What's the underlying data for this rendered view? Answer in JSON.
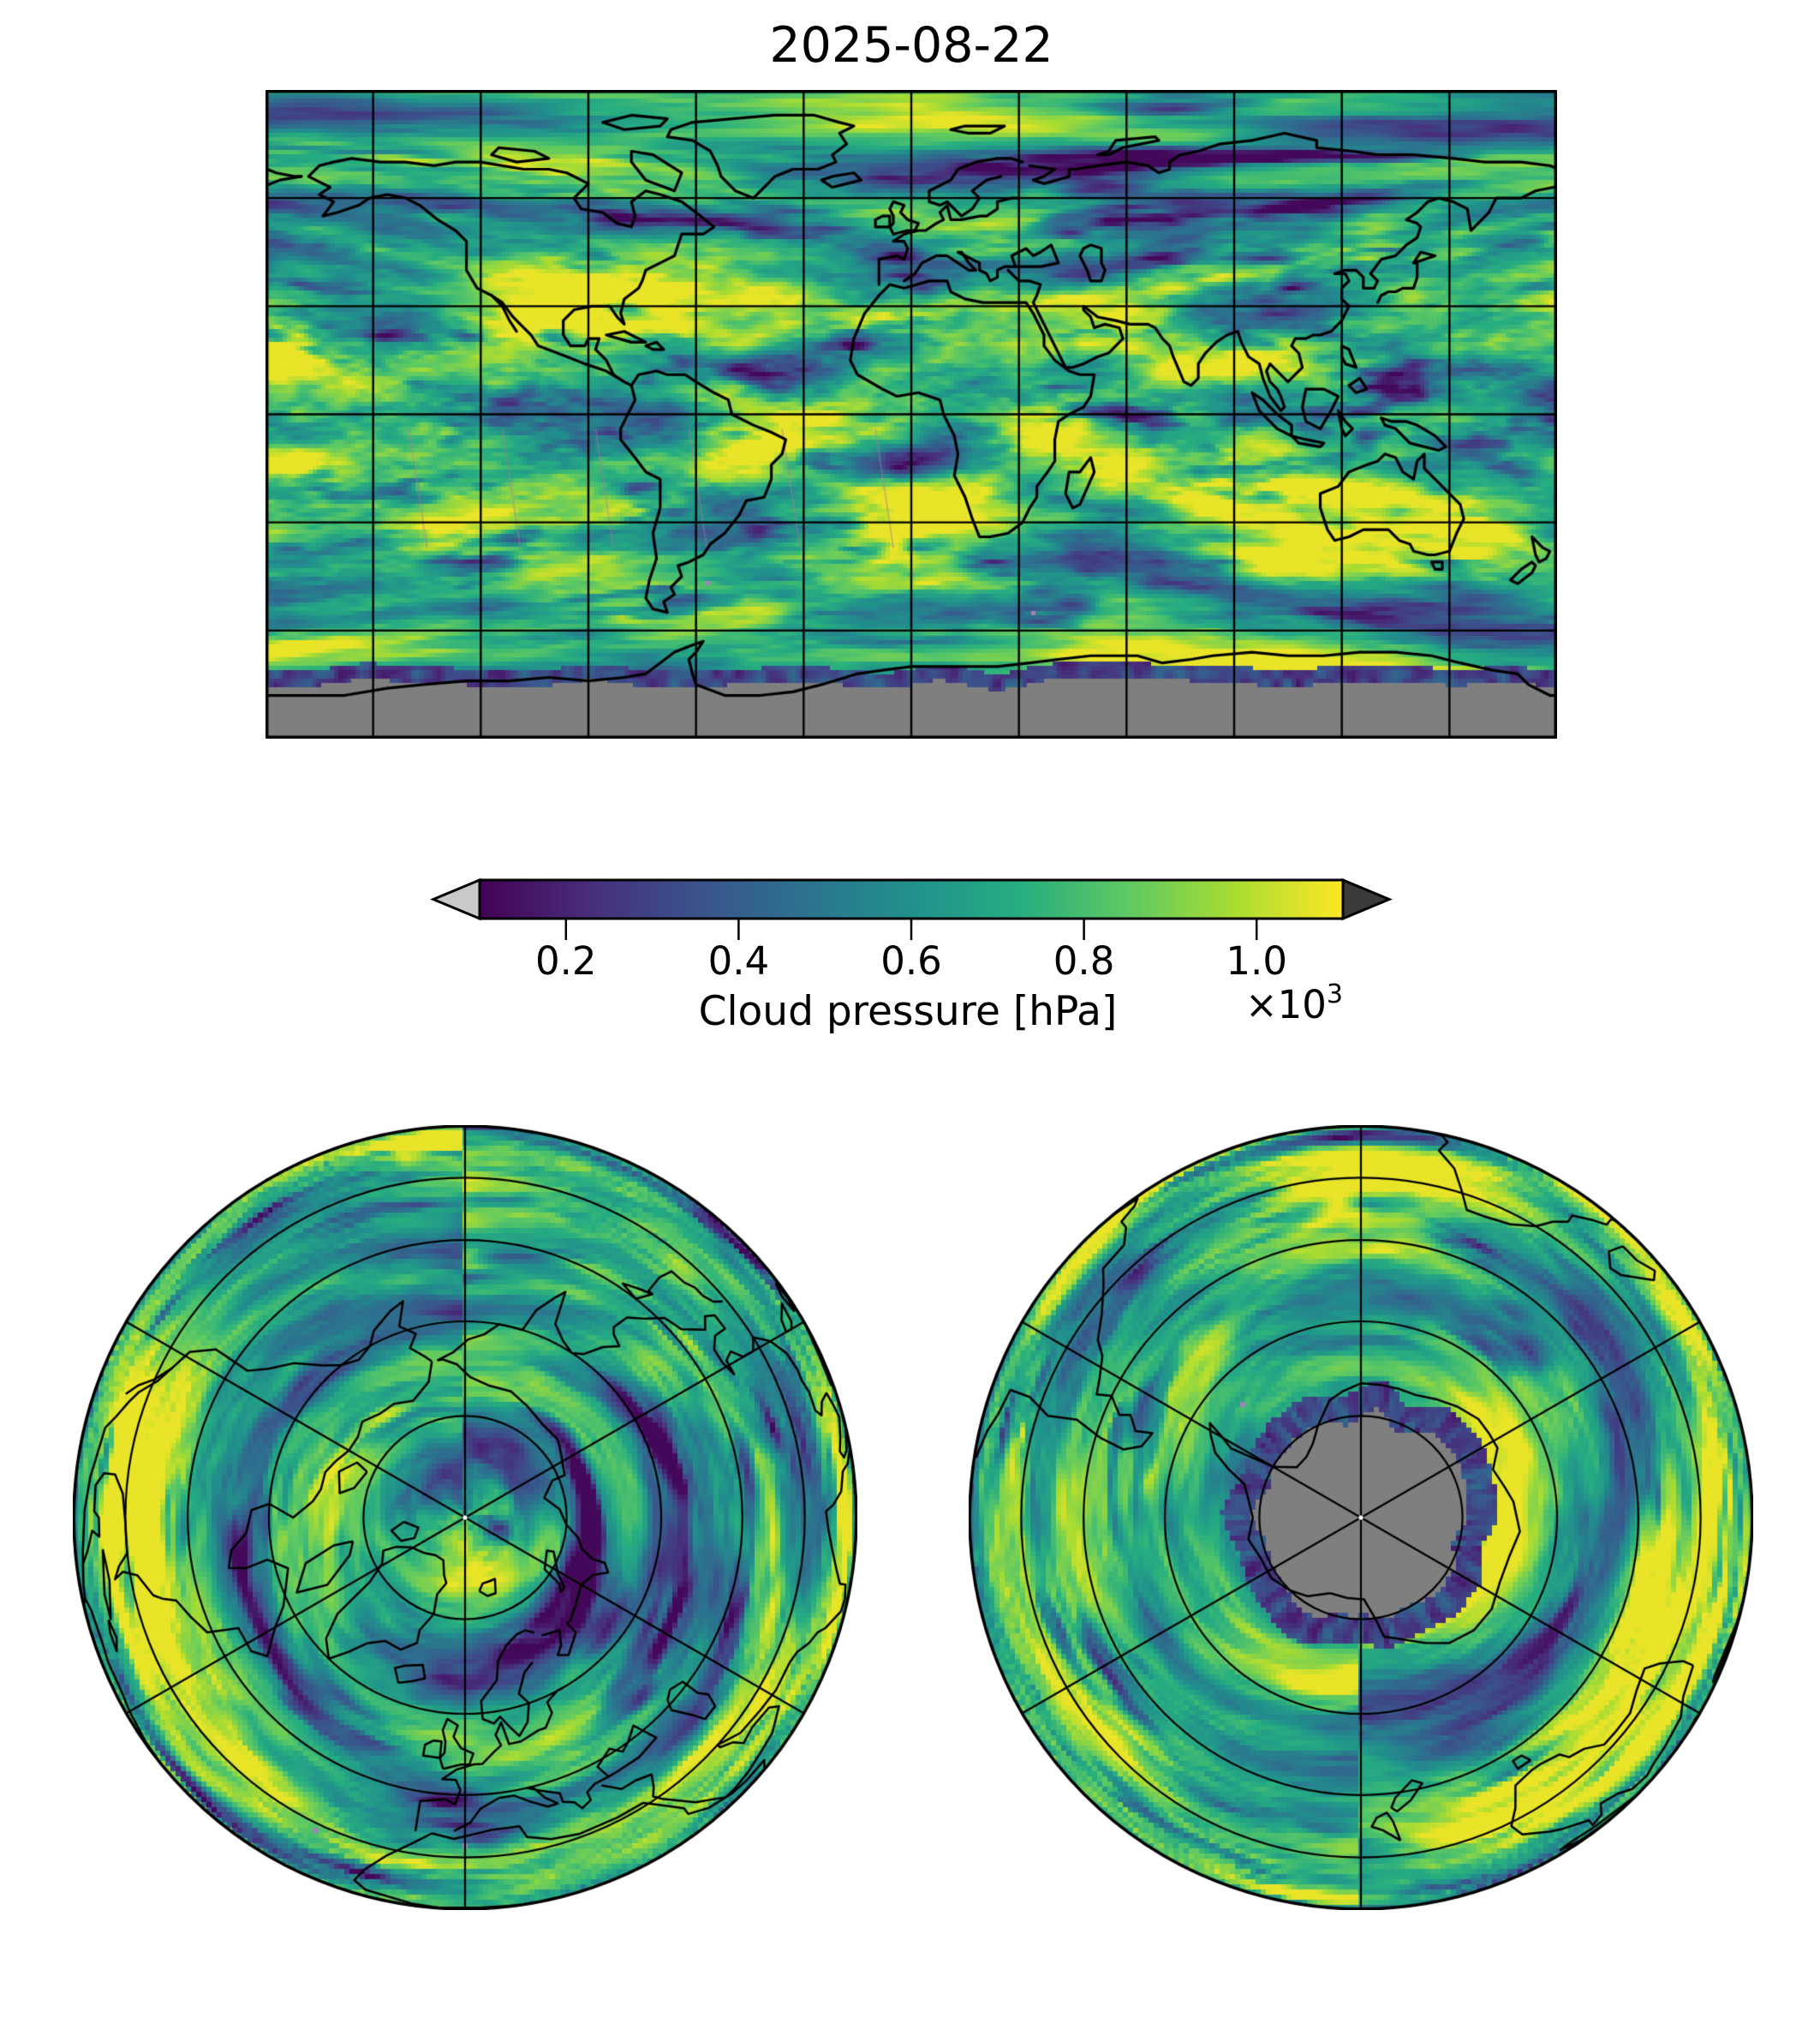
{
  "figure": {
    "title": "2025-08-22",
    "background_color": "#ffffff"
  },
  "colorbar": {
    "label": "Cloud pressure [hPa]",
    "ticks": [
      "0.2",
      "0.4",
      "0.6",
      "0.8",
      "1.0"
    ],
    "tick_values": [
      0.2,
      0.4,
      0.6,
      0.8,
      1.0
    ],
    "vmin": 0.1,
    "vmax": 1.1,
    "offset_base": "×10",
    "offset_exp": "3",
    "under_arrow_color": "#c9c9c9",
    "over_arrow_color": "#3a3a3a",
    "outline_color": "#000000"
  },
  "colors": {
    "viridis": [
      "#440154",
      "#472d7b",
      "#3b528b",
      "#2c728e",
      "#21918c",
      "#27ad81",
      "#5ec962",
      "#aadc32",
      "#fde725"
    ],
    "missing_data_grey": "#7f7f7f",
    "coastline": "#000000",
    "gridline": "#000000",
    "swath_artifact_pink": "#b078a0",
    "pole_dot": "#ffffff"
  },
  "panels": {
    "world_map": {
      "name": "global-equirectangular-map",
      "lon_gridline_spacing_deg": 30,
      "lat_gridline_spacing_deg": 30,
      "no_data_region": "grey band south of ~75S (polar night)"
    },
    "north_polar": {
      "name": "arctic-orthographic-view",
      "parallels_deg": [
        30,
        45,
        60,
        75
      ],
      "meridian_spacing_deg": 60
    },
    "south_polar": {
      "name": "antarctic-orthographic-view",
      "parallels_deg": [
        30,
        45,
        60,
        75
      ],
      "meridian_spacing_deg": 60,
      "no_data_region": "grey disc around South Pole (polar night)"
    }
  },
  "chart_data": {
    "type": "heatmap",
    "title": "2025-08-22",
    "variable": "Cloud pressure",
    "units": "hPa",
    "scale_factor": "×10³",
    "colormap": "viridis",
    "colorbar_range": [
      0.1,
      1.1
    ],
    "colorbar_ticks": [
      0.2,
      0.4,
      0.6,
      0.8,
      1.0
    ],
    "colorbar_extend": "both",
    "panels": [
      "Global map, equirectangular projection, lon -180..180, lat -90..90, 30-degree graticule, coastlines overlaid",
      "North polar orthographic hemisphere (pole to equator), meridians every 60 deg, parallels at 75/60/45/30 N",
      "South polar orthographic hemisphere (pole to equator), meridians every 60 deg, parallels at 75/60/45/30 S, grey no-data disc near pole"
    ],
    "value_summary": "Satellite cloud-top pressure field ~100-1100 hPa; predominantly 700-1000 hPa (green/yellow) with storm and deep-convection bands 150-500 hPa (blue/purple); grey = missing data in polar night south of ~75S"
  }
}
